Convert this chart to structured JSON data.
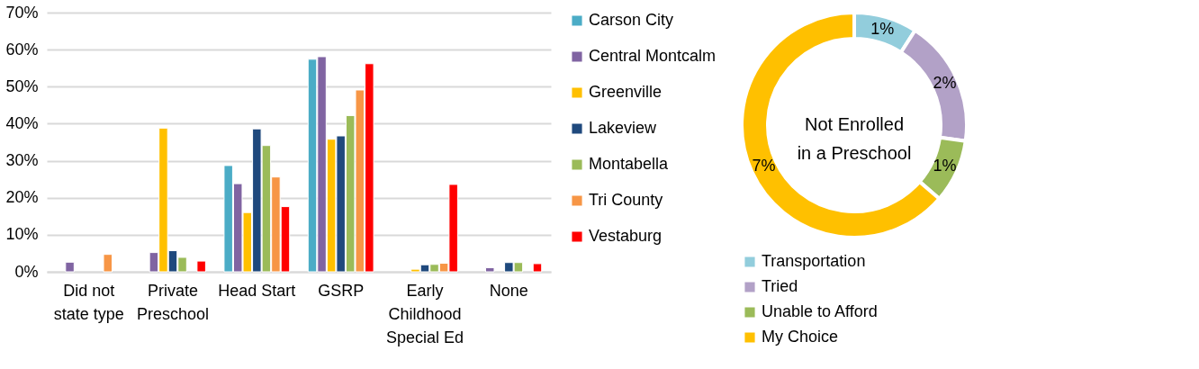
{
  "chart_data": [
    {
      "type": "bar",
      "categories": [
        "Did not state type",
        "Private Preschool",
        "Head Start",
        "GSRP",
        "Early Childhood Special Ed",
        "None"
      ],
      "series": [
        {
          "name": "Carson City",
          "color": "#4bacc6",
          "values": [
            null,
            null,
            28.7,
            57.4,
            null,
            null
          ]
        },
        {
          "name": "Central Montcalm",
          "color": "#8064a2",
          "values": [
            2.6,
            5.2,
            23.8,
            58.1,
            null,
            1.1
          ]
        },
        {
          "name": "Greenville",
          "color": "#ffc000",
          "values": [
            null,
            38.8,
            16.0,
            35.8,
            0.7,
            null
          ]
        },
        {
          "name": "Lakeview",
          "color": "#1f497d",
          "values": [
            null,
            5.7,
            38.6,
            36.7,
            1.9,
            2.5
          ]
        },
        {
          "name": "Montabella",
          "color": "#9bbb59",
          "values": [
            null,
            3.9,
            34.1,
            42.2,
            2.0,
            2.5
          ]
        },
        {
          "name": "Tri County",
          "color": "#f79646",
          "values": [
            4.7,
            null,
            25.6,
            49.1,
            2.3,
            null
          ]
        },
        {
          "name": "Vestaburg",
          "color": "#ff0000",
          "values": [
            null,
            2.9,
            17.6,
            56.2,
            23.6,
            2.2
          ]
        }
      ],
      "ylim": [
        0,
        70
      ],
      "yticks": [
        {
          "value": 0,
          "label": "0%"
        },
        {
          "value": 10,
          "label": "10%"
        },
        {
          "value": 20,
          "label": "20%"
        },
        {
          "value": 30,
          "label": "30%"
        },
        {
          "value": 40,
          "label": "40%"
        },
        {
          "value": 50,
          "label": "50%"
        },
        {
          "value": 60,
          "label": "60%"
        },
        {
          "value": 70,
          "label": "70%"
        }
      ],
      "grid": "y",
      "legend": "right"
    },
    {
      "type": "donut",
      "title": "Not Enrolled in a Preschool",
      "categories": [
        "Transportation",
        "Tried",
        "Unable to Afford",
        "My Choice"
      ],
      "values": [
        1,
        2,
        1,
        7
      ],
      "colors": [
        "#92cddc",
        "#b2a1c7",
        "#9bbb59",
        "#ffc000"
      ],
      "value_labels": [
        "1%",
        "2%",
        "1%",
        "7%"
      ],
      "legend": "bottom"
    }
  ]
}
